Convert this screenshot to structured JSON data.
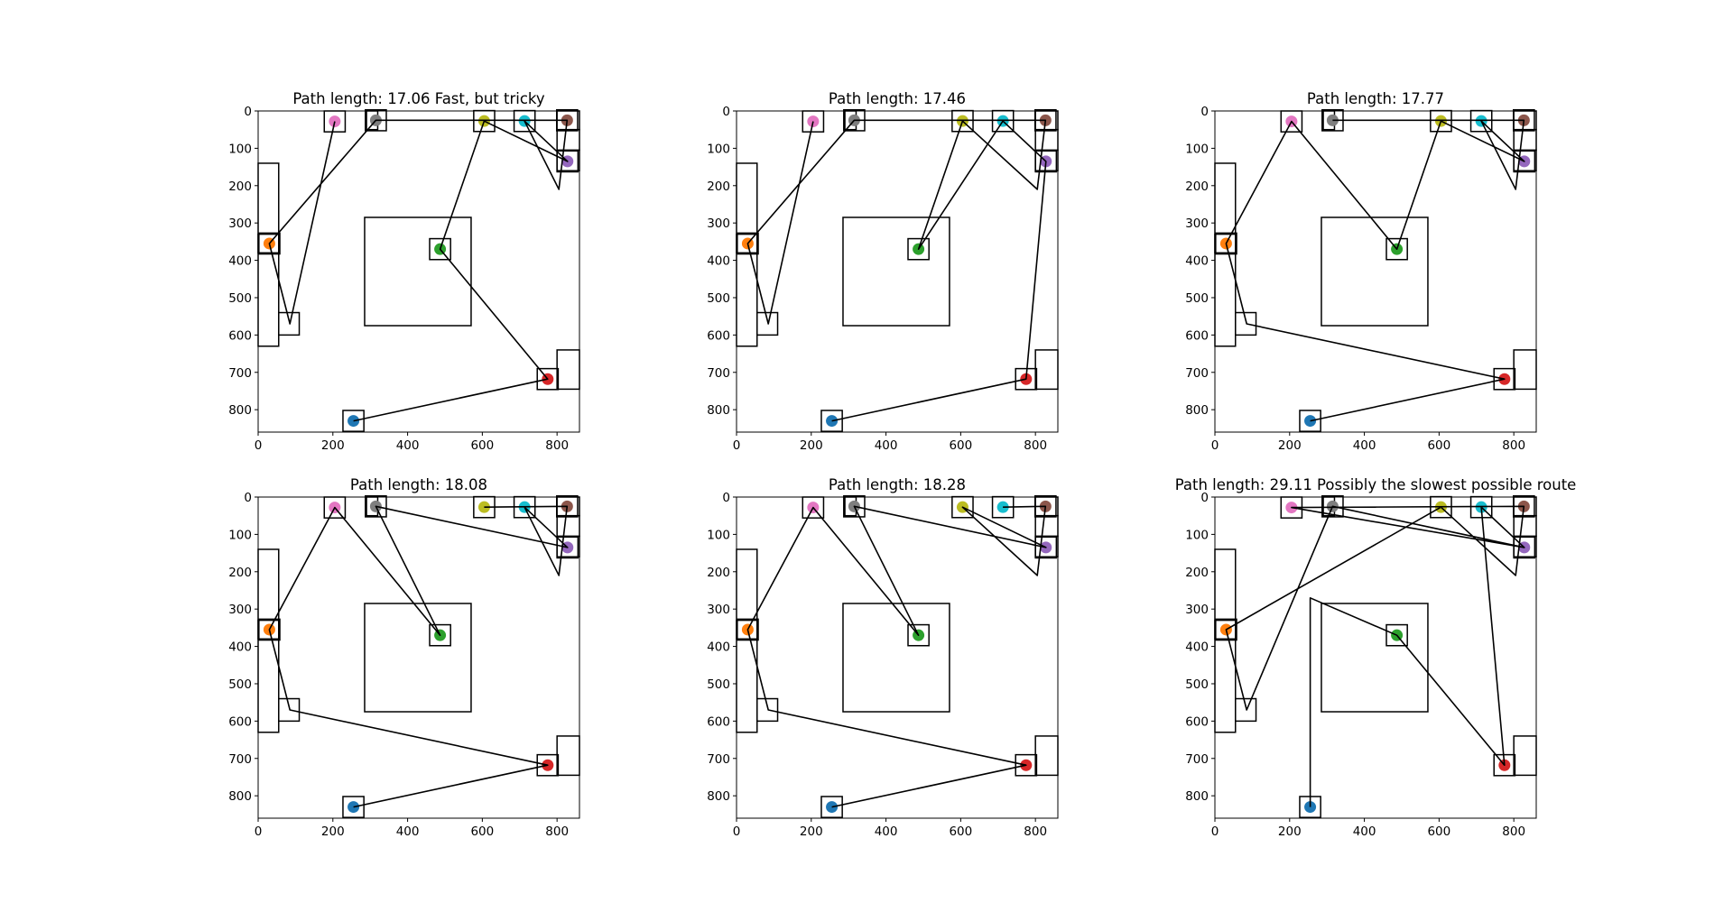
{
  "figure": {
    "background": "#ffffff",
    "line_color": "#000000"
  },
  "axis_template": {
    "xlim": [
      0,
      860
    ],
    "ylim": [
      860,
      0
    ],
    "xticks": [
      0,
      200,
      400,
      600,
      800
    ],
    "yticks": [
      0,
      100,
      200,
      300,
      400,
      500,
      600,
      700,
      800
    ],
    "grid": false,
    "y_inverted": true
  },
  "obstacles": [
    {
      "x0": 290,
      "y0": 0,
      "x1": 320,
      "y1": 50
    },
    {
      "x0": 0,
      "y0": 140,
      "x1": 55,
      "y1": 630
    },
    {
      "x0": 55,
      "y0": 540,
      "x1": 110,
      "y1": 600
    },
    {
      "x0": 0,
      "y0": 330,
      "x1": 55,
      "y1": 380
    },
    {
      "x0": 285,
      "y0": 285,
      "x1": 570,
      "y1": 575
    },
    {
      "x0": 800,
      "y0": 0,
      "x1": 860,
      "y1": 50
    },
    {
      "x0": 800,
      "y0": 50,
      "x1": 860,
      "y1": 105
    },
    {
      "x0": 800,
      "y0": 105,
      "x1": 860,
      "y1": 160
    },
    {
      "x0": 800,
      "y0": 640,
      "x1": 860,
      "y1": 745
    }
  ],
  "stations": [
    {
      "name": "blue",
      "x": 255,
      "y": 830,
      "color": "#1f77b4"
    },
    {
      "name": "orange",
      "x": 30,
      "y": 355,
      "color": "#ff7f0e"
    },
    {
      "name": "green",
      "x": 487,
      "y": 370,
      "color": "#2ca02c"
    },
    {
      "name": "red",
      "x": 775,
      "y": 718,
      "color": "#d62728"
    },
    {
      "name": "purple",
      "x": 828,
      "y": 135,
      "color": "#9467bd"
    },
    {
      "name": "brown",
      "x": 827,
      "y": 25,
      "color": "#8c564b"
    },
    {
      "name": "pink",
      "x": 205,
      "y": 28,
      "color": "#e377c2"
    },
    {
      "name": "gray",
      "x": 315,
      "y": 25,
      "color": "#7f7f7f"
    },
    {
      "name": "olive",
      "x": 605,
      "y": 27,
      "color": "#bcbd22"
    },
    {
      "name": "cyan",
      "x": 713,
      "y": 27,
      "color": "#17becf"
    }
  ],
  "chart_data": [
    {
      "type": "line",
      "title": "Path length: 17.06  Fast, but tricky",
      "path_length": 17.06,
      "route": [
        [
          255,
          830
        ],
        [
          775,
          718
        ],
        [
          487,
          370
        ],
        [
          605,
          27
        ],
        [
          828,
          135
        ],
        [
          713,
          27
        ],
        [
          805,
          210
        ],
        [
          827,
          25
        ],
        [
          315,
          25
        ],
        [
          30,
          355
        ],
        [
          30,
          355
        ],
        [
          85,
          570
        ],
        [
          205,
          28
        ]
      ]
    },
    {
      "type": "line",
      "title": "Path length: 17.46",
      "path_length": 17.46,
      "route": [
        [
          255,
          830
        ],
        [
          775,
          718
        ],
        [
          828,
          135
        ],
        [
          713,
          27
        ],
        [
          487,
          370
        ],
        [
          605,
          27
        ],
        [
          805,
          210
        ],
        [
          827,
          25
        ],
        [
          315,
          25
        ],
        [
          30,
          355
        ],
        [
          85,
          570
        ],
        [
          205,
          28
        ]
      ]
    },
    {
      "type": "line",
      "title": "Path length: 17.77",
      "path_length": 17.77,
      "route": [
        [
          255,
          830
        ],
        [
          775,
          718
        ],
        [
          85,
          570
        ],
        [
          30,
          355
        ],
        [
          205,
          28
        ],
        [
          487,
          370
        ],
        [
          605,
          27
        ],
        [
          828,
          135
        ],
        [
          713,
          27
        ],
        [
          805,
          210
        ],
        [
          827,
          25
        ],
        [
          315,
          25
        ]
      ]
    },
    {
      "type": "line",
      "title": "Path length: 18.08",
      "path_length": 18.08,
      "route": [
        [
          255,
          830
        ],
        [
          775,
          718
        ],
        [
          85,
          570
        ],
        [
          30,
          355
        ],
        [
          205,
          28
        ],
        [
          487,
          370
        ],
        [
          315,
          25
        ],
        [
          828,
          135
        ],
        [
          713,
          27
        ],
        [
          805,
          210
        ],
        [
          827,
          25
        ],
        [
          605,
          27
        ]
      ]
    },
    {
      "type": "line",
      "title": "Path length: 18.28",
      "path_length": 18.28,
      "route": [
        [
          255,
          830
        ],
        [
          775,
          718
        ],
        [
          85,
          570
        ],
        [
          30,
          355
        ],
        [
          205,
          28
        ],
        [
          487,
          370
        ],
        [
          315,
          25
        ],
        [
          828,
          135
        ],
        [
          605,
          27
        ],
        [
          805,
          210
        ],
        [
          827,
          25
        ],
        [
          713,
          27
        ]
      ]
    },
    {
      "type": "line",
      "title": "Path length: 29.11  Possibly the slowest possible route",
      "path_length": 29.11,
      "route": [
        [
          255,
          830
        ],
        [
          255,
          270
        ],
        [
          487,
          370
        ],
        [
          775,
          718
        ],
        [
          713,
          27
        ],
        [
          828,
          135
        ],
        [
          205,
          28
        ],
        [
          827,
          25
        ],
        [
          805,
          210
        ],
        [
          605,
          27
        ],
        [
          30,
          355
        ],
        [
          85,
          570
        ],
        [
          315,
          25
        ],
        [
          828,
          135
        ]
      ]
    }
  ]
}
